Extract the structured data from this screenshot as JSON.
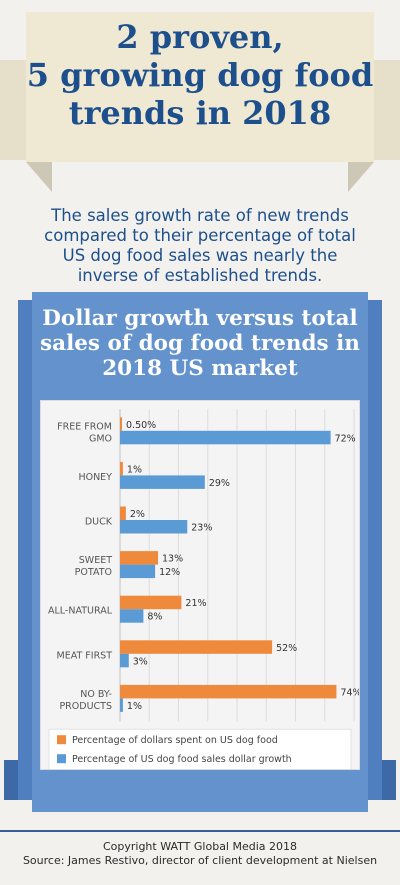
{
  "title_lines": [
    "2 proven,",
    "5 growing dog food",
    "trends in 2018"
  ],
  "subtitle_lines": [
    "The sales growth rate of new trends",
    "compared to their percentage of total",
    "US dog food sales was nearly the",
    "inverse of established trends."
  ],
  "chart_heading_lines": [
    "Dollar growth versus total",
    "sales of dog food trends in",
    "2018 US market"
  ],
  "colors": {
    "title": "#1d4f8c",
    "series_dollars_spent": "#ef8a3c",
    "series_growth": "#5b9bd5",
    "panel": "#6392cc"
  },
  "chart_data": {
    "type": "bar",
    "orientation": "horizontal",
    "categories": [
      [
        "FREE FROM",
        "GMO"
      ],
      [
        "HONEY"
      ],
      [
        "DUCK"
      ],
      [
        "SWEET",
        "POTATO"
      ],
      [
        "ALL-NATURAL"
      ],
      [
        "MEAT FIRST"
      ],
      [
        "NO BY-",
        "PRODUCTS"
      ]
    ],
    "series": [
      {
        "name": "Percentage of dollars spent on US dog food",
        "values": [
          0.5,
          1,
          2,
          13,
          21,
          52,
          74
        ],
        "labels": [
          "0.50%",
          "1%",
          "2%",
          "13%",
          "21%",
          "52%",
          "74%"
        ]
      },
      {
        "name": "Percentage of US dog food sales dollar growth",
        "values": [
          72,
          29,
          23,
          12,
          8,
          3,
          1
        ],
        "labels": [
          "72%",
          "29%",
          "23%",
          "12%",
          "8%",
          "3%",
          "1%"
        ]
      }
    ],
    "xlim": [
      0,
      80
    ],
    "grid": true,
    "legend_position": "bottom"
  },
  "footer_lines": [
    "Copyright WATT Global Media 2018",
    "Source: James Restivo, director of client development at Nielsen"
  ]
}
